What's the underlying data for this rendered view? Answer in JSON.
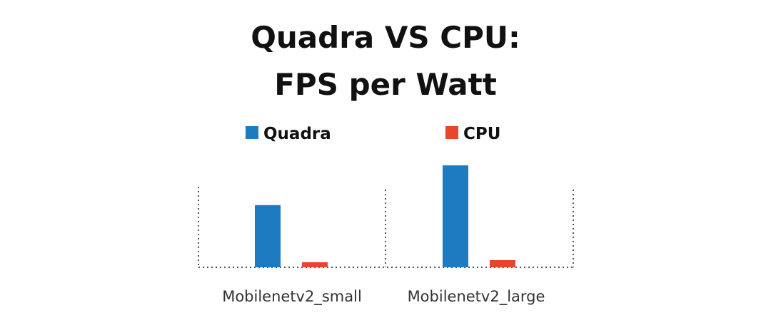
{
  "chart_data": {
    "type": "bar",
    "title_lines": [
      "Quadra VS CPU:",
      "FPS per Watt"
    ],
    "categories": [
      "Mobilenetv2_small",
      "Mobilenetv2_large"
    ],
    "series": [
      {
        "name": "Quadra",
        "color": "#1f7bc1",
        "values": [
          0.61,
          1.0
        ]
      },
      {
        "name": "CPU",
        "color": "#e8452c",
        "values": [
          0.05,
          0.07
        ]
      }
    ],
    "xlabel": "",
    "ylabel": "",
    "ylim": [
      0,
      1.0
    ],
    "legend": "top-center",
    "grid": "dotted"
  }
}
